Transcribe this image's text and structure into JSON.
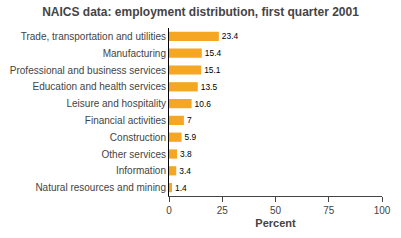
{
  "chart_data": {
    "type": "bar",
    "orientation": "horizontal",
    "title": "NAICS data: employment distribution, first quarter 2001",
    "categories": [
      "Natural resources and mining",
      "Information",
      "Other services",
      "Construction",
      "Financial activities",
      "Leisure and hospitality",
      "Education and health services",
      "Professional and business services",
      "Manufacturing",
      "Trade, transportation and utilities"
    ],
    "values": [
      1.4,
      3.4,
      3.8,
      5.9,
      7.0,
      10.6,
      13.5,
      15.1,
      15.4,
      23.4
    ],
    "color": "#F5A623",
    "xlabel": "Percent",
    "xlim": [
      0,
      100
    ],
    "xticks": [
      0,
      25,
      50,
      75,
      100
    ],
    "data_labels": true,
    "grid": false
  }
}
